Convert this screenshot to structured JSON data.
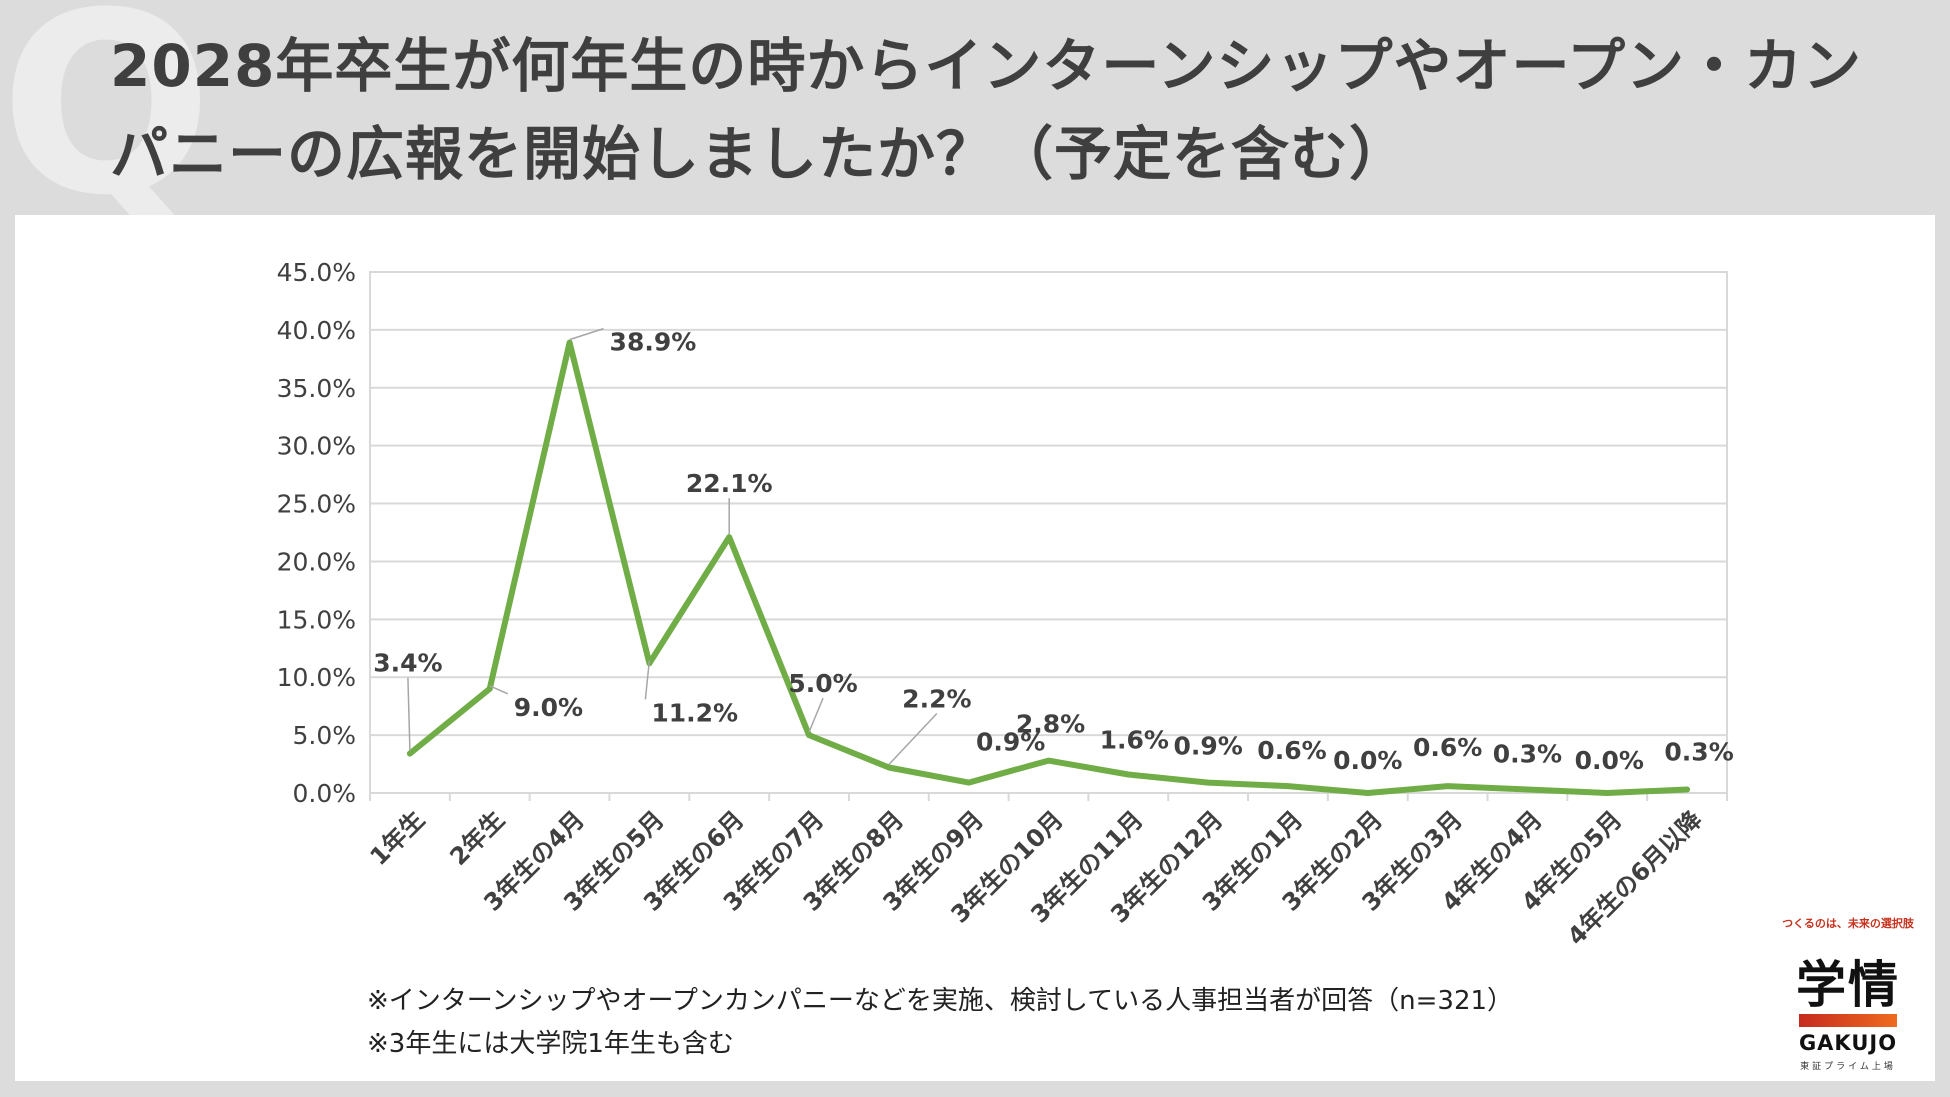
{
  "title": "2028年卒生が何年生の時からインターンシップやオープン・カンパニーの広報を開始しましたか？（予定を含む）",
  "watermark": "Q",
  "footnotes": [
    "※インターンシップやオープンカンパニーなどを実施、検討している人事担当者が回答（n=321）",
    "※3年生には大学院1年生も含む"
  ],
  "logo": {
    "tagline": "つくるのは、未来の選択肢",
    "mark": "学情",
    "brand": "GAKUJO",
    "sub": "東証プライム上場"
  },
  "colors": {
    "line": "#70ad47",
    "grid": "#d9d9d9",
    "text": "#404040",
    "accent": "#c8321e"
  },
  "chart_data": {
    "type": "line",
    "categories": [
      "1年生",
      "2年生",
      "3年生の4月",
      "3年生の5月",
      "3年生の6月",
      "3年生の7月",
      "3年生の8月",
      "3年生の9月",
      "3年生の10月",
      "3年生の11月",
      "3年生の12月",
      "3年生の1月",
      "3年生の2月",
      "3年生の3月",
      "4年生の4月",
      "4年生の5月",
      "4年生の6月以降"
    ],
    "values": [
      3.4,
      9.0,
      38.9,
      11.2,
      22.1,
      5.0,
      2.2,
      0.9,
      2.8,
      1.6,
      0.9,
      0.6,
      0.0,
      0.6,
      0.3,
      0.0,
      0.3
    ],
    "data_labels": [
      "3.4%",
      "9.0%",
      "38.9%",
      "11.2%",
      "22.1%",
      "5.0%",
      "2.2%",
      "0.9%",
      "2.8%",
      "1.6%",
      "0.9%",
      "0.6%",
      "0.0%",
      "0.6%",
      "0.3%",
      "0.0%",
      "0.3%"
    ],
    "ylim": [
      0,
      45
    ],
    "yticks": [
      0,
      5,
      10,
      15,
      20,
      25,
      30,
      35,
      40,
      45
    ],
    "ytick_labels": [
      "0.0%",
      "5.0%",
      "10.0%",
      "15.0%",
      "20.0%",
      "25.0%",
      "30.0%",
      "35.0%",
      "40.0%",
      "45.0%"
    ],
    "grid": true,
    "legend": "none"
  }
}
